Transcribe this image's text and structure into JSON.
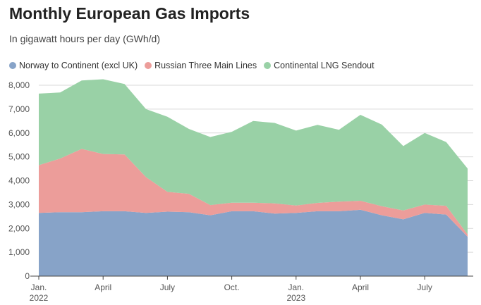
{
  "chart_data": {
    "type": "area",
    "stacked": true,
    "title": "Monthly European Gas Imports",
    "subtitle": "In gigawatt hours per day (GWh/d)",
    "x": [
      "2022-01",
      "2022-02",
      "2022-03",
      "2022-04",
      "2022-05",
      "2022-06",
      "2022-07",
      "2022-08",
      "2022-09",
      "2022-10",
      "2022-11",
      "2022-12",
      "2023-01",
      "2023-02",
      "2023-03",
      "2023-04",
      "2023-05",
      "2023-06",
      "2023-07",
      "2023-08",
      "2023-09"
    ],
    "series": [
      {
        "name": "Norway to Continent (excl UK)",
        "color": "#87a3c8",
        "values": [
          2650,
          2680,
          2680,
          2720,
          2720,
          2650,
          2700,
          2680,
          2550,
          2720,
          2720,
          2620,
          2650,
          2720,
          2720,
          2780,
          2550,
          2380,
          2650,
          2580,
          1650
        ]
      },
      {
        "name": "Russian Three Main Lines",
        "color": "#ec9d9a",
        "values": [
          2000,
          2250,
          2650,
          2400,
          2380,
          1500,
          830,
          770,
          430,
          360,
          360,
          430,
          310,
          350,
          400,
          380,
          380,
          370,
          350,
          370,
          100
        ]
      },
      {
        "name": "Continental LNG Sendout",
        "color": "#99d1a6",
        "values": [
          3000,
          2770,
          2870,
          3130,
          2950,
          2850,
          3150,
          2720,
          2850,
          2970,
          3420,
          3370,
          3140,
          3270,
          3010,
          3600,
          3420,
          2700,
          3000,
          2670,
          2760
        ]
      }
    ],
    "ylim": [
      0,
      8000
    ],
    "yticks": [
      {
        "value": 0,
        "label": "0"
      },
      {
        "value": 1000,
        "label": "1,000"
      },
      {
        "value": 2000,
        "label": "2,000"
      },
      {
        "value": 3000,
        "label": "3,000"
      },
      {
        "value": 4000,
        "label": "4,000"
      },
      {
        "value": 5000,
        "label": "5,000"
      },
      {
        "value": 6000,
        "label": "6,000"
      },
      {
        "value": 7000,
        "label": "7,000"
      },
      {
        "value": 8000,
        "label": "8,000"
      }
    ],
    "xticks": [
      {
        "at": "2022-01",
        "label": "Jan.",
        "sublabel": "2022"
      },
      {
        "at": "2022-04",
        "label": "April",
        "sublabel": ""
      },
      {
        "at": "2022-07",
        "label": "July",
        "sublabel": ""
      },
      {
        "at": "2022-10",
        "label": "Oct.",
        "sublabel": ""
      },
      {
        "at": "2023-01",
        "label": "Jan.",
        "sublabel": "2023"
      },
      {
        "at": "2023-04",
        "label": "April",
        "sublabel": ""
      },
      {
        "at": "2023-07",
        "label": "July",
        "sublabel": ""
      }
    ],
    "grid": true,
    "legend_position": "top-left"
  }
}
